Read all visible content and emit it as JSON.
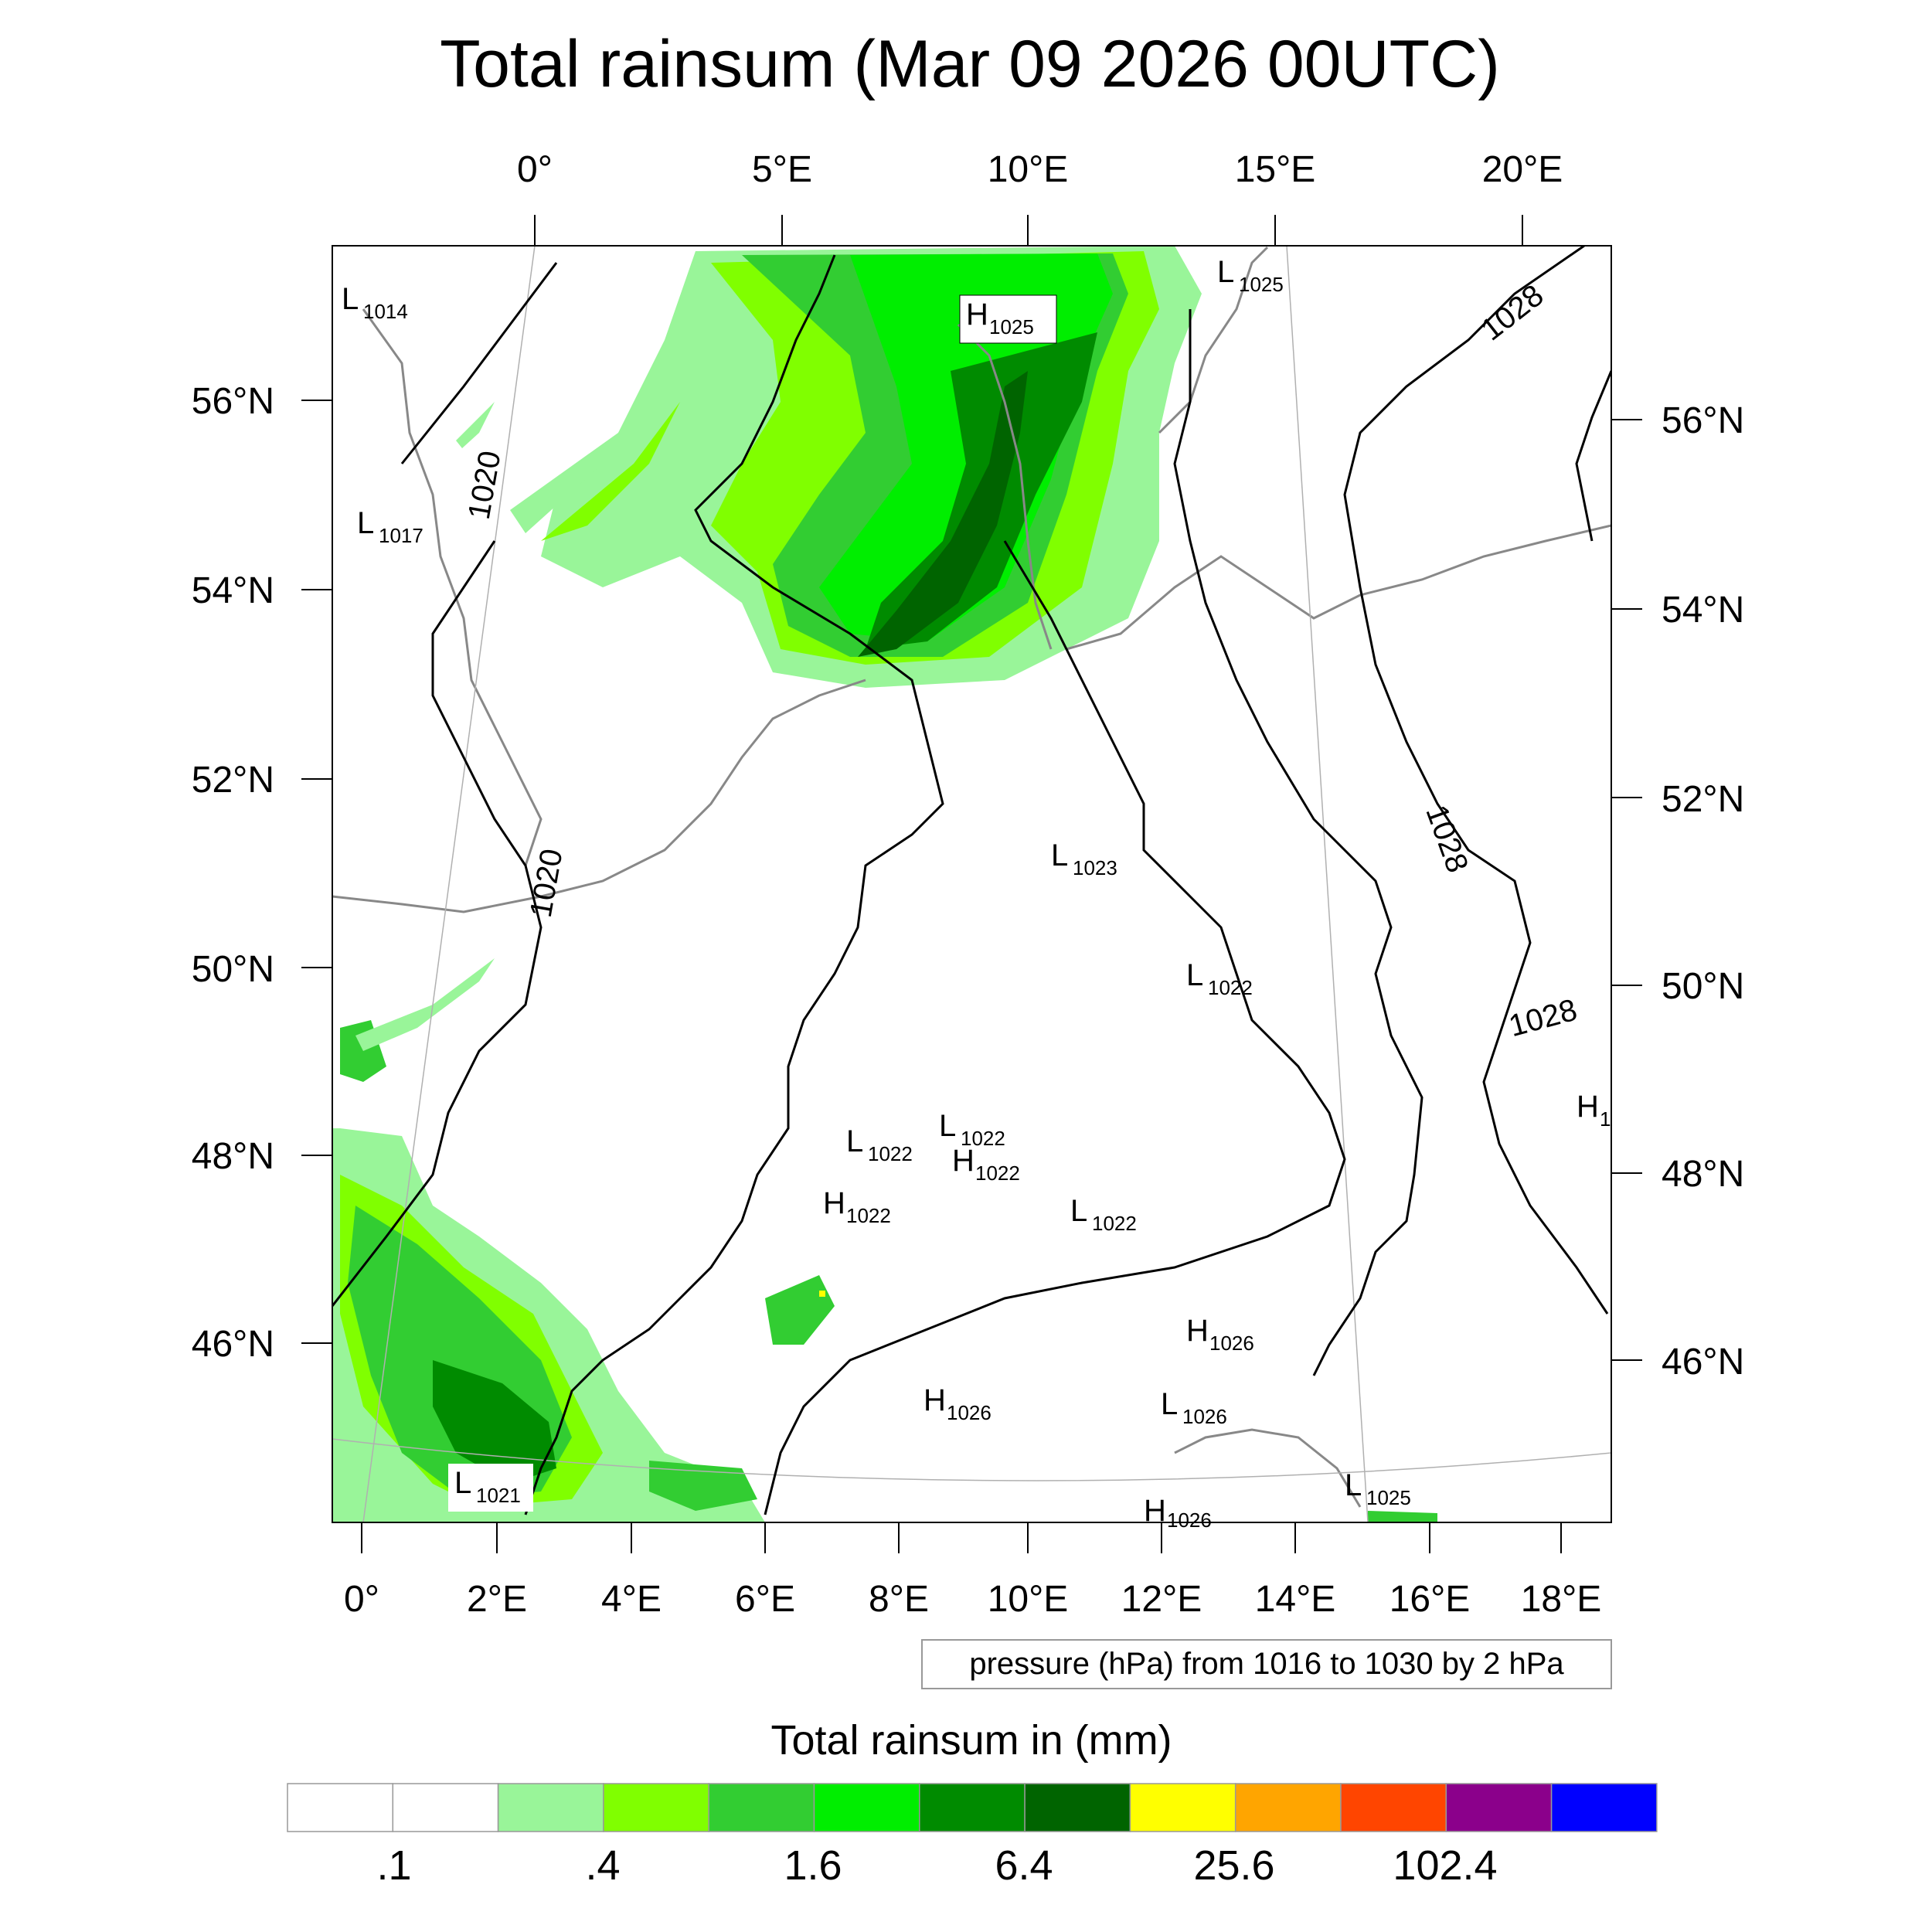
{
  "title": "Total rainsum (Mar 09 2026 00UTC)",
  "top_lon_labels": [
    "0°",
    "5°E",
    "10°E",
    "15°E",
    "20°E"
  ],
  "bottom_lon_labels": [
    "0°",
    "2°E",
    "4°E",
    "6°E",
    "8°E",
    "10°E",
    "12°E",
    "14°E",
    "16°E",
    "18°E"
  ],
  "left_lat_labels": [
    "56°N",
    "54°N",
    "52°N",
    "50°N",
    "48°N",
    "46°N"
  ],
  "right_lat_labels": [
    "56°N",
    "54°N",
    "52°N",
    "50°N",
    "48°N",
    "46°N"
  ],
  "contour_labels": [
    "1020",
    "1020",
    "1028",
    "1028",
    "1028"
  ],
  "pressure_centers": [
    {
      "kind": "L",
      "value": "1014"
    },
    {
      "kind": "L",
      "value": "1025"
    },
    {
      "kind": "H",
      "value": "1025"
    },
    {
      "kind": "L",
      "value": "1017"
    },
    {
      "kind": "L",
      "value": "1023"
    },
    {
      "kind": "L",
      "value": "1022"
    },
    {
      "kind": "L",
      "value": "1022"
    },
    {
      "kind": "L",
      "value": "1022"
    },
    {
      "kind": "H",
      "value": "1022"
    },
    {
      "kind": "H",
      "value": "1022"
    },
    {
      "kind": "L",
      "value": "1022"
    },
    {
      "kind": "H",
      "value": "1026"
    },
    {
      "kind": "H",
      "value": "1026"
    },
    {
      "kind": "L",
      "value": "1026"
    },
    {
      "kind": "L",
      "value": "1021"
    },
    {
      "kind": "L",
      "value": "1025"
    },
    {
      "kind": "H",
      "value": "1026"
    },
    {
      "kind": "H",
      "value": "1"
    }
  ],
  "contour_info": "pressure (hPa) from 1016 to 1030 by 2 hPa",
  "colorbar": {
    "title": "Total rainsum in (mm)",
    "colors": [
      "#ffffff",
      "#ffffff",
      "#99f599",
      "#80ff00",
      "#32cd32",
      "#00ee00",
      "#008b00",
      "#006400",
      "#ffff00",
      "#ffa500",
      "#ff4500",
      "#8b008b",
      "#0000ff"
    ],
    "labels": [
      ".1",
      ".4",
      "1.6",
      "6.4",
      "25.6",
      "102.4"
    ]
  },
  "rain_colors": {
    "c1": "#99f599",
    "c2": "#80ff00",
    "c3": "#32cd32",
    "c4": "#00ee00",
    "c5": "#008b00",
    "c6": "#006400",
    "c7": "#ffff00"
  }
}
